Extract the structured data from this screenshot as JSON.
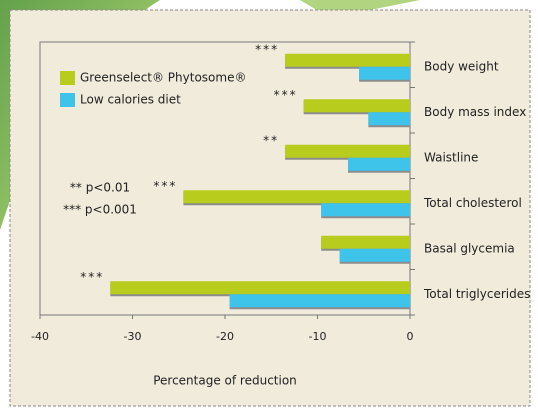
{
  "chart_data": {
    "type": "bar",
    "orientation": "horizontal",
    "x_label": "Percentage of reduction",
    "categories": [
      "Body weight",
      "Body mass index",
      "Waistline",
      "Total cholesterol",
      "Basal glycemia",
      "Total triglycerides"
    ],
    "series": [
      {
        "name": "Greenselect® Phytosome®",
        "color": "#b7cc1c",
        "values": [
          -13.5,
          -11.5,
          -13.5,
          -24.5,
          -9.6,
          -32.4
        ],
        "significance": [
          "***",
          "***",
          "**",
          "***",
          null,
          "***"
        ]
      },
      {
        "name": "Low calories diet",
        "color": "#3ec3ea",
        "values": [
          -5.5,
          -4.5,
          -6.7,
          -9.6,
          -7.6,
          -19.5
        ]
      }
    ],
    "footnotes": [
      "** p<0.01",
      "*** p<0.001"
    ],
    "xlim": [
      -40,
      0
    ],
    "xticks": [
      -40,
      -30,
      -20,
      -10,
      0
    ],
    "legend": "upper left"
  }
}
